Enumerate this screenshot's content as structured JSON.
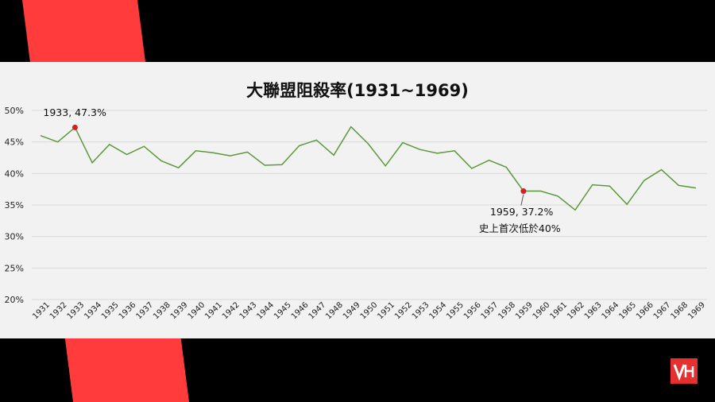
{
  "chart_data": {
    "type": "line",
    "title": "大聯盟阻殺率(1931~1969)",
    "xlabel": "",
    "ylabel": "",
    "ylim": [
      20,
      50
    ],
    "yticks": [
      "20%",
      "25%",
      "30%",
      "35%",
      "40%",
      "45%",
      "50%"
    ],
    "grid": true,
    "legend": "none",
    "line_color": "#5a9a3a",
    "marker_color": "#d81e1e",
    "categories": [
      "1931",
      "1932",
      "1933",
      "1934",
      "1935",
      "1936",
      "1937",
      "1938",
      "1939",
      "1940",
      "1941",
      "1942",
      "1943",
      "1944",
      "1945",
      "1946",
      "1947",
      "1948",
      "1949",
      "1950",
      "1951",
      "1952",
      "1953",
      "1954",
      "1955",
      "1956",
      "1957",
      "1958",
      "1959",
      "1960",
      "1961",
      "1962",
      "1963",
      "1964",
      "1965",
      "1966",
      "1967",
      "1968",
      "1969"
    ],
    "series": [
      {
        "values": [
          46.0,
          45.0,
          47.3,
          41.7,
          44.6,
          43.0,
          44.3,
          42.0,
          40.9,
          43.6,
          43.3,
          42.8,
          43.4,
          41.3,
          41.4,
          44.4,
          45.3,
          42.9,
          47.4,
          44.7,
          41.2,
          44.9,
          43.8,
          43.2,
          43.6,
          40.8,
          42.1,
          41.0,
          37.2,
          37.2,
          36.4,
          34.2,
          38.2,
          38.0,
          35.1,
          38.9,
          40.6,
          38.1,
          37.7
        ]
      }
    ],
    "annotations": [
      {
        "category": "1933",
        "value": 47.3,
        "text": "1933, 47.3%"
      },
      {
        "category": "1959",
        "value": 37.2,
        "text": "1959, 37.2%",
        "subtext": "史上首次低於40%"
      }
    ]
  }
}
